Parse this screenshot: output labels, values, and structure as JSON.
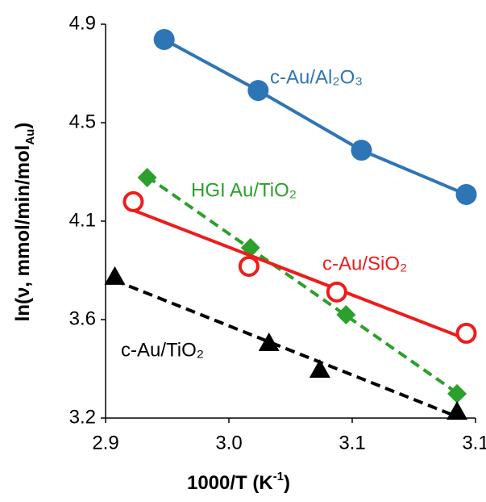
{
  "chart_data": {
    "type": "line",
    "x_label": [
      "1000/T (K",
      "-1",
      ")"
    ],
    "y_label": [
      "ln(ν, mmol/min/mol",
      "Au",
      ")"
    ],
    "xlim": [
      2.9,
      3.14
    ],
    "xticks": [
      2.9,
      {
        "value": 2.98,
        "label": "3.0"
      },
      {
        "value": 3.06,
        "label": "3.1"
      },
      {
        "value": 3.14,
        "label": "3.1"
      }
    ],
    "ylim": [
      3.2,
      4.9
    ],
    "yticks": [
      3.2,
      {
        "value": 3.625,
        "label": "3.6"
      },
      {
        "value": 4.05,
        "label": "4.1"
      },
      {
        "value": 4.475,
        "label": "4.5"
      },
      4.9
    ],
    "series": [
      {
        "name": "c-Au/Al₂O₃",
        "color": "#2e75b6",
        "marker": "filled-circle",
        "dash": false,
        "fit": false,
        "x": [
          2.938,
          2.999,
          3.066,
          3.134
        ],
        "values": [
          4.834,
          4.614,
          4.356,
          4.165
        ]
      },
      {
        "name": "HGI Au/TiO₂",
        "color": "#2ca02c",
        "marker": "diamond",
        "dash": true,
        "fit": true,
        "x": [
          2.927,
          2.994,
          3.056,
          3.128
        ],
        "values": [
          4.238,
          3.935,
          3.646,
          3.305
        ]
      },
      {
        "name": "c-Au/SiO₂",
        "color": "#ee1c1c",
        "marker": "open-circle",
        "dash": false,
        "fit": true,
        "x": [
          2.918,
          2.993,
          3.05,
          3.134
        ],
        "values": [
          4.134,
          3.855,
          3.744,
          3.566
        ]
      },
      {
        "name": "c-Au/TiO₂",
        "color": "#000000",
        "marker": "triangle",
        "dash": true,
        "fit": true,
        "x": [
          2.906,
          3.006,
          3.039,
          3.128
        ],
        "values": [
          3.81,
          3.524,
          3.409,
          3.228
        ]
      }
    ]
  }
}
